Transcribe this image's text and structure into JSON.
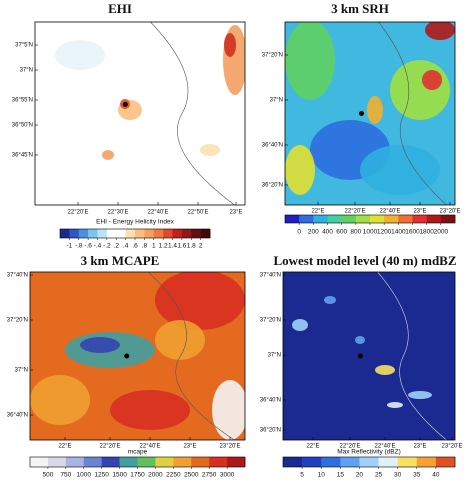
{
  "panels": [
    {
      "title": "EHI",
      "lat_labels": [
        "37°5'N",
        "37°N",
        "36°55'N",
        "36°50'N",
        "36°45'N"
      ],
      "lon_labels": [
        "22°20'E",
        "22°30'E",
        "22°40'E",
        "22°50'E",
        "23°E"
      ],
      "colorbar": {
        "label": "EHI - Energy Helicity Index",
        "ticks": [
          "-1",
          "-.8",
          "-.6",
          "-.4",
          "-.2",
          ".2",
          ".4",
          ".6",
          ".8",
          "1",
          "1.2",
          "1.4",
          "1.6",
          "1.8",
          "2"
        ],
        "colors": [
          "#1a2a8c",
          "#2e56c4",
          "#4a8fe0",
          "#7ec2f0",
          "#b8e4f8",
          "#ffffff",
          "#ffffff",
          "#fde0b0",
          "#fbc080",
          "#f4a060",
          "#ee7a40",
          "#e04a2a",
          "#c02020",
          "#901818",
          "#601010",
          "#400808"
        ]
      }
    },
    {
      "title": "3 km SRH",
      "lat_labels": [
        "37°20'N",
        "37°N",
        "36°40'N",
        "36°20'N"
      ],
      "lon_labels": [
        "22°E",
        "22°20'E",
        "22°40'E",
        "23°E",
        "23°20'E"
      ],
      "colorbar": {
        "label": "",
        "ticks": [
          "0",
          "200",
          "400",
          "600",
          "800",
          "1000",
          "1200",
          "1400",
          "1600",
          "1800",
          "2000"
        ],
        "colors": [
          "#2020c0",
          "#2c6ee0",
          "#30b0e0",
          "#40d0a0",
          "#60d060",
          "#a0e040",
          "#e0e030",
          "#f0b030",
          "#f07030",
          "#e03030",
          "#b01818",
          "#801010"
        ]
      }
    },
    {
      "title": "3 km MCAPE",
      "lat_labels": [
        "37°40'N",
        "37°20'N",
        "37°N",
        "36°40'N"
      ],
      "lon_labels": [
        "22°E",
        "22°20'E",
        "22°40'E",
        "23°E",
        "23°20'E"
      ],
      "colorbar": {
        "label": "mcape",
        "ticks": [
          "500",
          "750",
          "1000",
          "1250",
          "1500",
          "1750",
          "2000",
          "2250",
          "2500",
          "2750",
          "3000"
        ],
        "colors": [
          "#f4f4f4",
          "#d8d8e8",
          "#a8b4e4",
          "#6a84d4",
          "#3444b0",
          "#40a0a0",
          "#60c060",
          "#e0d040",
          "#f0a030",
          "#e46a20",
          "#d83020",
          "#b01818"
        ]
      }
    },
    {
      "title": "Lowest model level (40 m) mdBZ",
      "lat_labels": [
        "37°40'N",
        "37°20'N",
        "37°N",
        "36°40'N",
        "36°20'N"
      ],
      "lon_labels": [
        "22°E",
        "22°20'E",
        "22°40'E",
        "23°E",
        "23°20'E"
      ],
      "colorbar": {
        "label": "Max Reflectivity (dBZ)",
        "ticks": [
          "5",
          "10",
          "15",
          "20",
          "25",
          "30",
          "35",
          "40"
        ],
        "colors": [
          "#1a2a90",
          "#2040c0",
          "#2f6fe0",
          "#60a0f0",
          "#a0d0f8",
          "#e0f0f8",
          "#f8e060",
          "#f8a030",
          "#e05020"
        ]
      }
    }
  ]
}
